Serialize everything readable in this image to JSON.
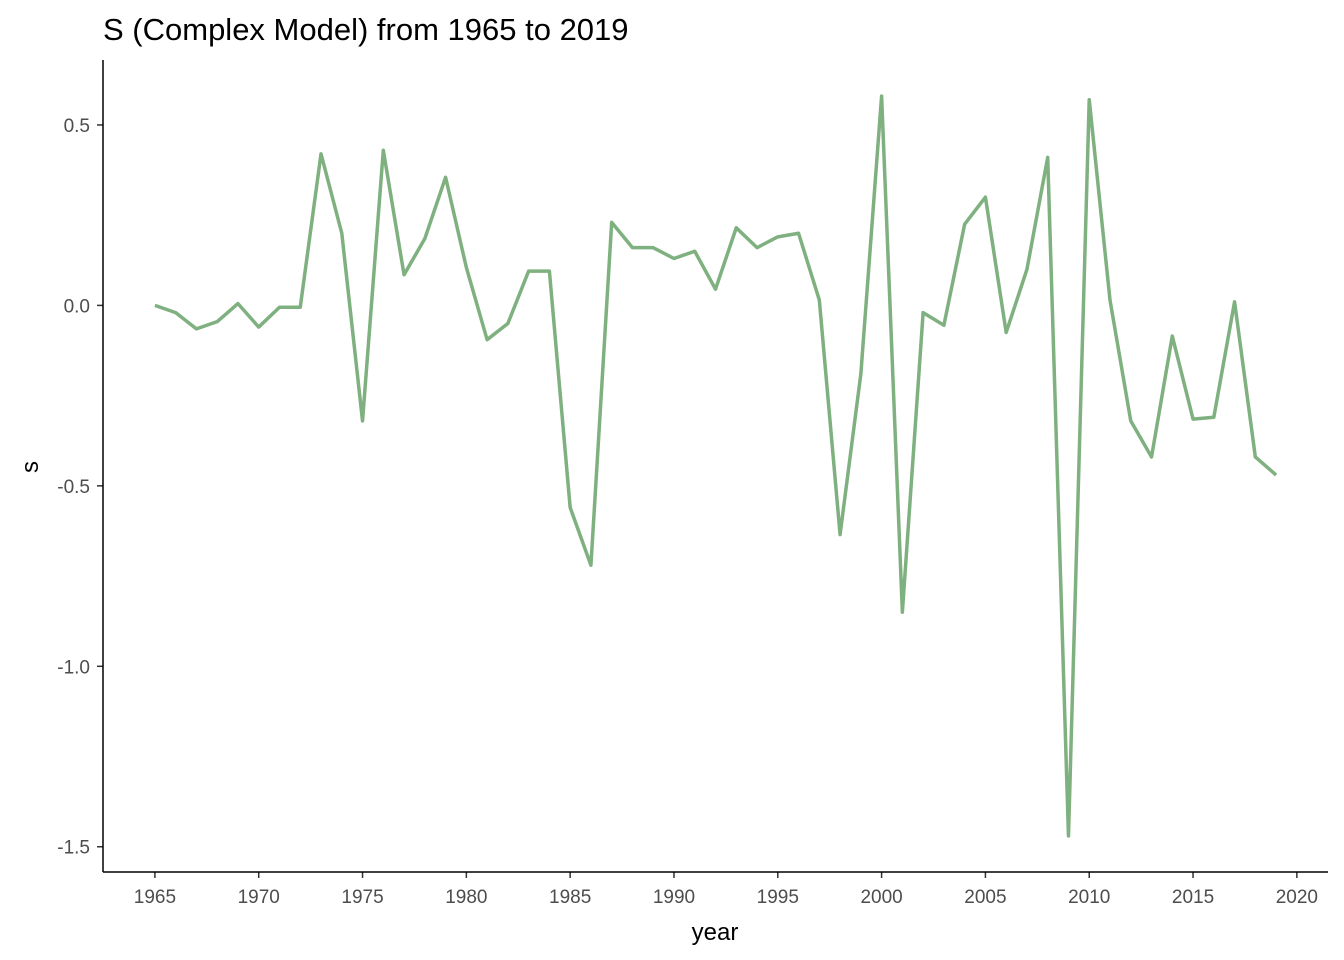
{
  "chart_data": {
    "type": "line",
    "title": "S (Complex Model) from 1965 to 2019",
    "xlabel": "year",
    "ylabel": "s",
    "xlim": [
      1962.5,
      2021.5
    ],
    "ylim": [
      -1.57,
      0.68
    ],
    "x_ticks": [
      1965,
      1970,
      1975,
      1980,
      1985,
      1990,
      1995,
      2000,
      2005,
      2010,
      2015,
      2020
    ],
    "y_ticks": [
      0.5,
      0.0,
      -0.5,
      -1.0,
      -1.5
    ],
    "y_tick_labels": [
      "0.5",
      "0.0",
      "-0.5",
      "-1.0",
      "-1.5"
    ],
    "grid": false,
    "legend": "none",
    "line_color": "#7fb07f",
    "series": [
      {
        "x": [
          1965,
          1966,
          1967,
          1968,
          1969,
          1970,
          1971,
          1972,
          1973,
          1974,
          1975,
          1976,
          1977,
          1978,
          1979,
          1980,
          1981,
          1982,
          1983,
          1984,
          1985,
          1986,
          1987,
          1988,
          1989,
          1990,
          1991,
          1992,
          1993,
          1994,
          1995,
          1996,
          1997,
          1998,
          1999,
          2000,
          2001,
          2002,
          2003,
          2004,
          2005,
          2006,
          2007,
          2008,
          2009,
          2010,
          2011,
          2012,
          2013,
          2014,
          2015,
          2016,
          2017,
          2018,
          2019
        ],
        "values": [
          0.0,
          -0.02,
          -0.065,
          -0.045,
          0.005,
          -0.06,
          -0.005,
          -0.005,
          0.42,
          0.2,
          -0.32,
          0.43,
          0.085,
          0.185,
          0.355,
          0.105,
          -0.095,
          -0.05,
          0.095,
          0.095,
          -0.56,
          -0.72,
          0.23,
          0.16,
          0.16,
          0.13,
          0.15,
          0.045,
          0.215,
          0.16,
          0.19,
          0.2,
          0.015,
          -0.635,
          -0.19,
          0.58,
          -0.85,
          -0.02,
          -0.055,
          0.225,
          0.3,
          -0.075,
          0.1,
          0.41,
          -1.47,
          0.57,
          0.015,
          -0.32,
          -0.42,
          -0.085,
          -0.315,
          -0.31,
          0.01,
          -0.42,
          -0.47
        ]
      }
    ]
  }
}
